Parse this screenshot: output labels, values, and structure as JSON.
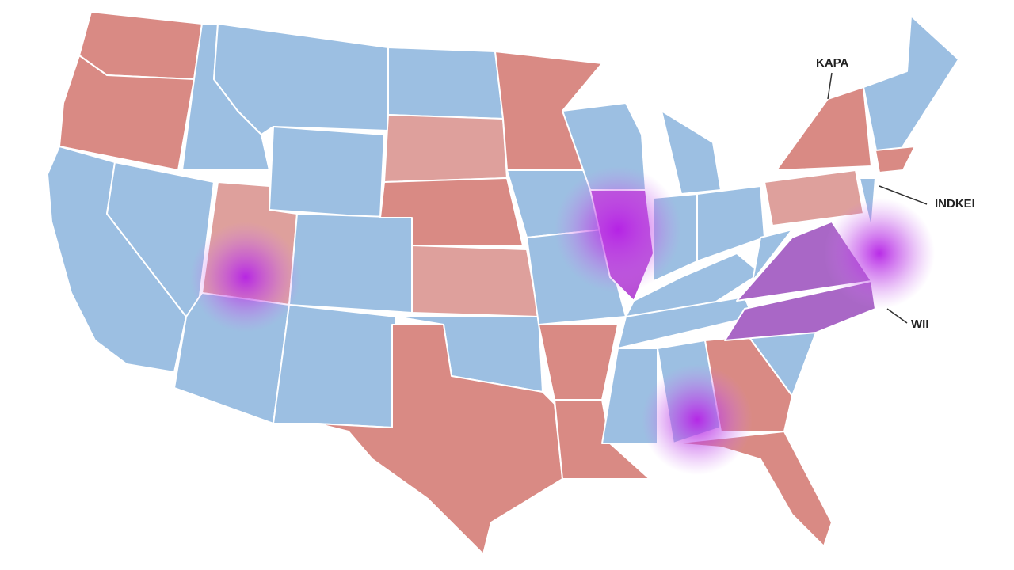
{
  "labels": [
    "KAPA",
    "INDKEI",
    "WII"
  ]
}
